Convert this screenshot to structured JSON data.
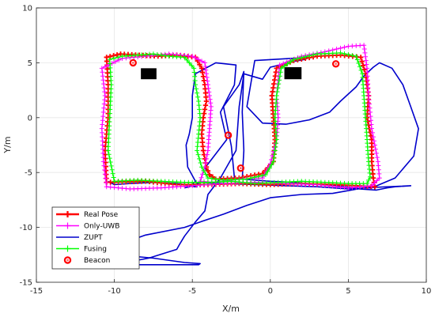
{
  "chart_data": {
    "type": "line",
    "title": "",
    "xlabel": "X/m",
    "ylabel": "Y/m",
    "xlim": [
      -15,
      10
    ],
    "ylim": [
      -15,
      10
    ],
    "xticks": [
      "-15",
      "-10",
      "-5",
      "0",
      "5",
      "10"
    ],
    "yticks": [
      "-15",
      "-10",
      "-5",
      "0",
      "5",
      "10"
    ],
    "grid": true,
    "legend_position": "bottom-left",
    "series": [
      {
        "name": "Real Pose",
        "color": "#ff0000",
        "marker": "plus",
        "x": [
          -10.5,
          -9.6,
          -8.4,
          -7.2,
          -6.0,
          -4.8,
          -4.4,
          -4.2,
          -4.1,
          -4.3,
          -4.4,
          -4.3,
          -4.1,
          -3.9,
          -3.5,
          -2.0,
          -0.5,
          0.2,
          0.3,
          0.2,
          0.1,
          0.4,
          1.5,
          3.0,
          4.5,
          5.8,
          6.1,
          6.3,
          6.2,
          6.5,
          6.5,
          6.6,
          6.7,
          5.5,
          4.0,
          2.0,
          0.0,
          -2.0,
          -4.0,
          -6.0,
          -8.0,
          -10.5,
          -10.6,
          -10.4,
          -10.4,
          -10.5
        ],
        "y": [
          5.5,
          5.8,
          5.7,
          5.6,
          5.7,
          5.5,
          4.5,
          3.0,
          1.5,
          0.0,
          -1.5,
          -3.0,
          -4.5,
          -5.2,
          -5.6,
          -5.5,
          -5.1,
          -4.0,
          -2.0,
          0.0,
          2.0,
          4.5,
          5.2,
          5.6,
          5.7,
          5.5,
          4.0,
          2.0,
          0.0,
          -2.0,
          -4.0,
          -5.5,
          -6.3,
          -6.2,
          -6.1,
          -6.0,
          -6.1,
          -6.0,
          -6.1,
          -6.1,
          -5.8,
          -5.9,
          -3.0,
          0.0,
          3.0,
          5.5
        ]
      },
      {
        "name": "Only-UWB",
        "color": "#ff00ff",
        "marker": "plus",
        "x": [
          -10.8,
          -9.5,
          -8.0,
          -6.5,
          -5.0,
          -4.2,
          -4.0,
          -3.8,
          -3.9,
          -4.0,
          -4.2,
          -4.5,
          -3.5,
          -2.0,
          -0.5,
          0.0,
          0.4,
          0.5,
          0.4,
          0.6,
          2.0,
          3.5,
          5.0,
          6.0,
          6.2,
          6.3,
          6.5,
          6.9,
          7.0,
          6.5,
          5.0,
          3.0,
          1.0,
          -1.0,
          -3.0,
          -5.0,
          -7.0,
          -9.0,
          -10.5,
          -10.7,
          -10.8,
          -10.6,
          -10.8
        ],
        "y": [
          4.5,
          5.4,
          5.6,
          5.8,
          5.6,
          5.0,
          3.0,
          1.0,
          -1.0,
          -3.0,
          -4.5,
          -5.8,
          -5.9,
          -5.6,
          -5.5,
          -4.2,
          -2.0,
          0.0,
          2.0,
          4.8,
          5.6,
          6.0,
          6.5,
          6.6,
          4.5,
          2.0,
          -1.0,
          -4.0,
          -5.5,
          -6.2,
          -6.4,
          -6.1,
          -6.0,
          -5.9,
          -6.0,
          -6.2,
          -6.4,
          -6.5,
          -6.3,
          -4.0,
          -1.0,
          2.0,
          4.5
        ]
      },
      {
        "name": "ZUPT",
        "color": "#0000cc",
        "marker": "none",
        "x": [
          -10.4,
          -10.0,
          -9.0,
          -7.5,
          -6.0,
          -5.0,
          -4.7,
          -4.9,
          -5.0,
          -4.8,
          -5.3,
          -5.4,
          -5.2,
          -5.0,
          -5.0,
          -4.8,
          -3.5,
          -2.2,
          -2.3,
          -3.2,
          -2.8,
          -4.2,
          -3.6,
          -2.3,
          -2.5,
          -3.0,
          -2.0,
          -1.7,
          -1.8,
          -1.7,
          -1.8,
          0.0,
          1.5,
          4.0,
          5.5,
          5.7,
          6.8,
          7.5,
          8.0,
          9.0,
          6.0,
          4.0,
          2.0,
          0.0,
          -1.5,
          -3.0,
          -4.5,
          -5.5,
          -8.0,
          -10.2,
          -9.8,
          -7.5,
          -5.5,
          -4.5,
          -4.6,
          -9.5,
          -9.3,
          -7.8,
          -6.0,
          -5.8,
          -5.5,
          -4.8,
          -4.2,
          -4.0,
          -3.2,
          -2.2,
          -2.0,
          -1.7,
          -0.5,
          0.0,
          0.6,
          1.0,
          2.2,
          2.5,
          -1.0,
          -1.5,
          -0.5,
          1.0,
          2.5,
          3.8,
          4.5,
          5.5,
          6.0,
          6.6,
          7.0,
          7.8,
          8.5,
          9.0,
          9.5,
          9.2,
          8.0,
          6.5,
          5.0,
          3.0,
          1.0,
          -1.0,
          -3.0,
          -4.5,
          -5.2,
          -5.5
        ],
        "y": [
          -5.8,
          -6.1,
          -6.0,
          -5.9,
          -6.0,
          -6.2,
          -6.3,
          -6.3,
          -6.1,
          -5.8,
          -4.5,
          -2.5,
          -1.5,
          0.0,
          2.0,
          4.0,
          5.0,
          4.8,
          3.0,
          0.5,
          -2.0,
          -4.6,
          -5.6,
          -5.5,
          -2.6,
          1.0,
          3.0,
          4.2,
          0.5,
          -3.0,
          -5.6,
          -5.8,
          -5.9,
          -6.2,
          -6.4,
          -6.5,
          -6.6,
          -6.4,
          -6.3,
          -6.2,
          -6.4,
          -6.9,
          -7.0,
          -7.3,
          -8.0,
          -8.8,
          -9.5,
          -10.0,
          -10.7,
          -11.8,
          -12.5,
          -12.8,
          -13.2,
          -13.3,
          -13.4,
          -13.4,
          -13.2,
          -12.8,
          -12.0,
          -11.5,
          -10.8,
          -9.5,
          -8.5,
          -7.0,
          -5.5,
          -3.0,
          1.0,
          4.0,
          3.5,
          4.6,
          4.8,
          5.0,
          5.3,
          5.5,
          5.2,
          1.0,
          -0.5,
          -0.6,
          -0.2,
          0.5,
          1.5,
          2.8,
          3.8,
          4.6,
          5.0,
          4.5,
          3.0,
          1.0,
          -1.0,
          -3.5,
          -5.5,
          -6.4,
          -6.5,
          -6.3,
          -6.2,
          -6.1,
          -6.0,
          -5.9,
          -6.3,
          -6.4
        ]
      },
      {
        "name": "Fusing",
        "color": "#00ff00",
        "marker": "plus",
        "x": [
          -10.3,
          -9.5,
          -8.5,
          -7.5,
          -6.5,
          -5.5,
          -4.9,
          -4.8,
          -4.6,
          -4.5,
          -4.6,
          -4.7,
          -4.4,
          -4.0,
          -3.0,
          -1.5,
          -0.3,
          0.2,
          0.4,
          0.3,
          0.4,
          0.7,
          1.5,
          3.0,
          4.5,
          5.5,
          5.9,
          6.0,
          6.1,
          6.2,
          6.3,
          6.4,
          6.2,
          5.0,
          3.5,
          2.0,
          0.5,
          -1.0,
          -2.5,
          -4.0,
          -5.5,
          -7.0,
          -8.5,
          -10.0,
          -10.4,
          -10.3,
          -10.2,
          -10.3
        ],
        "y": [
          5.3,
          5.6,
          5.7,
          5.8,
          5.6,
          5.5,
          4.5,
          3.0,
          1.5,
          0.0,
          -1.5,
          -3.0,
          -4.5,
          -5.5,
          -5.7,
          -5.6,
          -5.2,
          -4.0,
          -2.0,
          0.0,
          2.0,
          4.5,
          5.3,
          5.8,
          5.9,
          5.6,
          4.0,
          2.0,
          0.0,
          -2.0,
          -4.0,
          -5.4,
          -6.0,
          -6.0,
          -5.9,
          -5.8,
          -5.9,
          -6.0,
          -5.8,
          -5.9,
          -5.9,
          -5.8,
          -5.7,
          -5.8,
          -3.0,
          0.0,
          3.0,
          5.3
        ]
      },
      {
        "name": "Beacon",
        "color": "#ff0000",
        "marker": "circle",
        "x": [
          -8.8,
          -2.7,
          -1.9,
          4.2
        ],
        "y": [
          5.0,
          -1.6,
          -4.6,
          4.9
        ]
      }
    ],
    "patches": [
      {
        "x": [
          -8.3,
          -7.3
        ],
        "y": [
          3.5,
          4.5
        ],
        "color": "#000000"
      },
      {
        "x": [
          0.9,
          2.0
        ],
        "y": [
          3.5,
          4.6
        ],
        "color": "#000000"
      }
    ]
  }
}
